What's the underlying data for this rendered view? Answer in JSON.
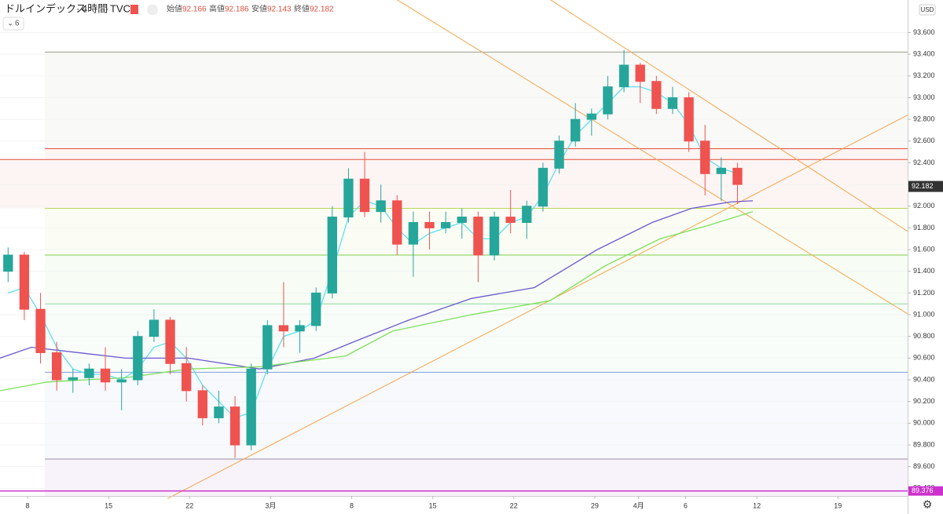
{
  "chart_data": {
    "type": "candlestick",
    "symbol": "ドルインデックス",
    "interval": "4時間",
    "source": "TVC",
    "indicator_count": 6,
    "ohlc_legend": [
      {
        "label": "始値",
        "value": 92.166
      },
      {
        "label": "高値",
        "value": 92.186
      },
      {
        "label": "安値",
        "value": 92.143
      },
      {
        "label": "終値",
        "value": 92.182
      }
    ],
    "currency": "USD",
    "up_color": "#26a69a",
    "down_color": "#ef5350",
    "x": [
      0.5,
      1.5,
      2.5,
      3.5,
      4.5,
      5.5,
      6.5,
      7.5,
      8.5,
      9.5,
      10.5,
      11.5,
      12.5,
      13.5,
      14.5,
      15.5,
      16.5,
      17.5,
      18.5,
      19.5,
      20.5,
      21.5,
      22.5,
      23.5,
      24.5,
      25.5,
      26.5,
      27.5,
      28.5,
      29.5,
      30.5,
      31.5,
      32.5,
      33.5,
      34.5,
      35.5,
      36.5,
      37.5,
      38.5,
      39.5,
      40.5,
      41.5,
      42.5,
      43.5,
      44.5,
      45.5
    ],
    "open": [
      91.4,
      91.55,
      91.05,
      90.65,
      90.4,
      90.42,
      90.5,
      90.38,
      90.4,
      90.8,
      90.95,
      90.55,
      90.3,
      90.05,
      90.15,
      89.8,
      90.5,
      90.9,
      90.85,
      90.9,
      91.2,
      91.9,
      92.25,
      91.95,
      92.05,
      91.65,
      91.85,
      91.8,
      91.85,
      91.9,
      91.55,
      91.9,
      91.85,
      92.0,
      92.35,
      92.6,
      92.8,
      92.85,
      93.1,
      93.3,
      93.15,
      92.9,
      93.0,
      92.6,
      92.3,
      92.35
    ],
    "high": [
      91.62,
      91.58,
      91.2,
      90.75,
      90.5,
      90.55,
      90.7,
      90.5,
      90.85,
      91.05,
      90.98,
      90.7,
      90.35,
      90.3,
      90.25,
      90.55,
      90.95,
      91.3,
      90.95,
      91.25,
      92.0,
      92.35,
      92.5,
      92.2,
      92.1,
      91.95,
      91.95,
      91.95,
      91.98,
      91.95,
      91.95,
      92.15,
      92.05,
      92.4,
      92.65,
      92.95,
      92.9,
      93.2,
      93.44,
      93.32,
      93.2,
      93.1,
      93.05,
      92.75,
      92.45,
      92.4
    ],
    "low": [
      91.3,
      90.95,
      90.55,
      90.3,
      90.28,
      90.35,
      90.3,
      90.12,
      90.35,
      90.75,
      90.45,
      90.2,
      89.98,
      90.0,
      89.68,
      89.75,
      90.45,
      90.7,
      90.65,
      90.85,
      91.15,
      91.85,
      91.9,
      91.85,
      91.55,
      91.35,
      91.6,
      91.75,
      91.7,
      91.3,
      91.5,
      91.75,
      91.7,
      91.95,
      92.3,
      92.55,
      92.65,
      92.8,
      93.05,
      92.95,
      92.85,
      92.85,
      92.5,
      92.1,
      92.05,
      92.02
    ],
    "close": [
      91.55,
      91.05,
      90.65,
      90.4,
      90.42,
      90.5,
      90.38,
      90.4,
      90.8,
      90.95,
      90.55,
      90.3,
      90.05,
      90.15,
      89.8,
      90.5,
      90.9,
      90.85,
      90.9,
      91.2,
      91.9,
      92.25,
      91.95,
      92.05,
      91.65,
      91.85,
      91.8,
      91.85,
      91.9,
      91.55,
      91.9,
      91.85,
      92.0,
      92.35,
      92.6,
      92.8,
      92.85,
      93.1,
      93.3,
      93.15,
      92.9,
      93.0,
      92.6,
      92.3,
      92.35,
      92.2
    ],
    "moving_averages": [
      {
        "color": "#5ee0ef",
        "values": [
          91.2,
          91.25,
          91.0,
          90.7,
          90.5,
          90.45,
          90.45,
          90.4,
          90.5,
          90.7,
          90.75,
          90.6,
          90.35,
          90.2,
          90.05,
          90.1,
          90.5,
          90.8,
          90.85,
          90.95,
          91.4,
          91.9,
          92.05,
          92.0,
          91.8,
          91.65,
          91.75,
          91.8,
          91.85,
          91.7,
          91.7,
          91.85,
          91.9,
          92.1,
          92.4,
          92.65,
          92.8,
          92.95,
          93.1,
          93.1,
          93.05,
          92.95,
          92.75,
          92.45,
          92.35,
          92.3
        ]
      },
      {
        "color": "#6a5acd",
        "x": [
          0,
          1.94,
          4.85,
          7.76,
          11.64,
          16.0,
          19.39,
          21.82,
          25.21,
          29.09,
          32.97,
          36.85,
          40.24,
          42.67,
          45.09,
          46.45
        ],
        "values": [
          90.6,
          90.7,
          90.65,
          90.6,
          90.6,
          90.5,
          90.6,
          90.75,
          90.95,
          91.15,
          91.25,
          91.6,
          91.85,
          91.98,
          92.04,
          92.05
        ]
      },
      {
        "color": "#7ee05a",
        "x": [
          0,
          2.91,
          7.76,
          11.64,
          16.0,
          21.33,
          24.24,
          29.09,
          33.94,
          37.33,
          40.73,
          43.64,
          46.45
        ],
        "values": [
          90.3,
          90.38,
          90.42,
          90.5,
          90.52,
          90.62,
          90.85,
          91.0,
          91.13,
          91.45,
          91.7,
          91.82,
          91.95
        ]
      }
    ],
    "levels": [
      {
        "value": 93.42,
        "color": "#9a9a8a",
        "start": 2.77
      },
      {
        "value": 92.53,
        "color": "#e0503c",
        "start": 2.77
      },
      {
        "value": 92.43,
        "color": "#e0503c"
      },
      {
        "value": 91.98,
        "color": "#b8d85a",
        "start": 2.77
      },
      {
        "value": 91.55,
        "color": "#7ccf4a",
        "start": 2.77
      },
      {
        "value": 91.1,
        "color": "#8fd8a0",
        "start": 2.77
      },
      {
        "value": 90.47,
        "color": "#7f9fd8",
        "start": 2.77
      },
      {
        "value": 89.67,
        "color": "#9a8aa0",
        "start": 2.77
      }
    ],
    "trend_lines": [
      {
        "color": "#f5a54a",
        "x": [
          24.48,
          56.0
        ],
        "values": [
          93.904,
          91.008
        ]
      },
      {
        "color": "#f5a54a",
        "x": [
          33.94,
          56.0
        ],
        "values": [
          93.904,
          91.768
        ]
      },
      {
        "color": "#f5a54a",
        "x": [
          10.34,
          56.0
        ],
        "values": [
          89.306,
          92.84
        ]
      }
    ],
    "last_price": 92.182,
    "marker_price": {
      "value": 89.376,
      "label": "89.376",
      "color": "#cc33cc"
    },
    "xlim": [
      0,
      56
    ],
    "ylim": [
      89.33,
      93.9
    ],
    "xticks": [
      {
        "value": 1.7,
        "label": "8"
      },
      {
        "value": 6.7,
        "label": "15"
      },
      {
        "value": 11.7,
        "label": "22"
      },
      {
        "value": 16.7,
        "label": "3月"
      },
      {
        "value": 21.7,
        "label": "8"
      },
      {
        "value": 26.7,
        "label": "15"
      },
      {
        "value": 31.7,
        "label": "22"
      },
      {
        "value": 36.7,
        "label": "29"
      },
      {
        "value": 39.4,
        "label": "4月"
      },
      {
        "value": 42.3,
        "label": "6"
      },
      {
        "value": 46.7,
        "label": "12"
      },
      {
        "value": 51.7,
        "label": "19"
      }
    ],
    "yticks": [
      {
        "value": 89.4,
        "label": "89.400"
      },
      {
        "value": 89.6,
        "label": "89.600"
      },
      {
        "value": 89.8,
        "label": "89.800"
      },
      {
        "value": 90.0,
        "label": "90.000"
      },
      {
        "value": 90.2,
        "label": "90.200"
      },
      {
        "value": 90.4,
        "label": "90.400"
      },
      {
        "value": 90.6,
        "label": "90.600"
      },
      {
        "value": 90.8,
        "label": "90.800"
      },
      {
        "value": 91.0,
        "label": "91.000"
      },
      {
        "value": 91.2,
        "label": "91.200"
      },
      {
        "value": 91.4,
        "label": "91.400"
      },
      {
        "value": 91.6,
        "label": "91.600"
      },
      {
        "value": 91.8,
        "label": "91.800"
      },
      {
        "value": 92.0,
        "label": "92.000"
      },
      {
        "value": 92.2,
        "label": "92.200"
      },
      {
        "value": 92.4,
        "label": "92.400"
      },
      {
        "value": 92.6,
        "label": "92.600"
      },
      {
        "value": 92.8,
        "label": "92.800"
      },
      {
        "value": 93.0,
        "label": "93.000"
      },
      {
        "value": 93.2,
        "label": "93.200"
      },
      {
        "value": 93.4,
        "label": "93.400"
      },
      {
        "value": 93.6,
        "label": "93.600"
      }
    ]
  }
}
